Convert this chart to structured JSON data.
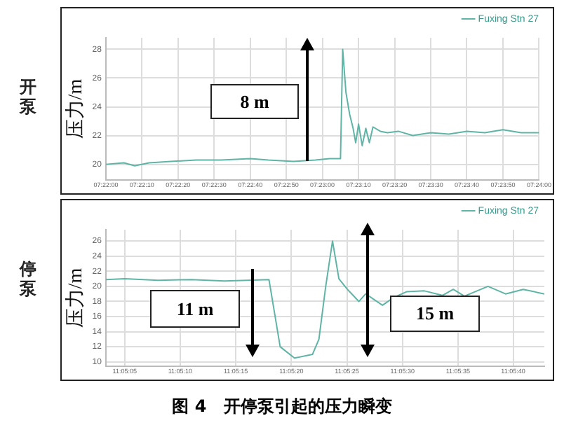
{
  "chart_data": [
    {
      "type": "line",
      "title": "开泵",
      "ylabel": "压力/m",
      "legend": "top right",
      "grid": true,
      "annotations": [
        "8 m"
      ],
      "xlim": [
        7.36667,
        7.4
      ],
      "xticks": [
        {
          "value": 7.36667,
          "label": "07:22:00"
        },
        {
          "value": 7.36944,
          "label": "07:22:10"
        },
        {
          "value": 7.37222,
          "label": "07:22:20"
        },
        {
          "value": 7.375,
          "label": "07:22:30"
        },
        {
          "value": 7.37778,
          "label": "07:22:40"
        },
        {
          "value": 7.38056,
          "label": "07:22:50"
        },
        {
          "value": 7.38333,
          "label": "07:23:00"
        },
        {
          "value": 7.38611,
          "label": "07:23:10"
        },
        {
          "value": 7.38889,
          "label": "07:23:20"
        },
        {
          "value": 7.39167,
          "label": "07:23:30"
        },
        {
          "value": 7.39444,
          "label": "07:23:40"
        },
        {
          "value": 7.39722,
          "label": "07:23:50"
        },
        {
          "value": 7.4,
          "label": "07:24:00"
        }
      ],
      "ylim": [
        18.9,
        28.8
      ],
      "yticks": [
        20,
        22,
        24,
        26,
        28
      ],
      "x": [
        7.36667,
        7.36806,
        7.36889,
        7.37,
        7.37167,
        7.37361,
        7.37556,
        7.37778,
        7.37917,
        7.38111,
        7.38278,
        7.38389,
        7.38472,
        7.38489,
        7.38514,
        7.38542,
        7.38569,
        7.38589,
        7.38611,
        7.38639,
        7.38667,
        7.38694,
        7.38722,
        7.38778,
        7.38833,
        7.38917,
        7.39028,
        7.39167,
        7.39306,
        7.39444,
        7.39583,
        7.39722,
        7.39861,
        7.4
      ],
      "series": [
        {
          "name": "Fuxing Stn 27",
          "color": "#5fb5a5",
          "values": [
            20.0,
            20.1,
            19.9,
            20.1,
            20.2,
            20.3,
            20.3,
            20.4,
            20.3,
            20.2,
            20.3,
            20.4,
            20.4,
            28.0,
            25,
            23.5,
            22.5,
            21.5,
            22.8,
            21.3,
            22.5,
            21.5,
            22.6,
            22.3,
            22.2,
            22.3,
            22.0,
            22.2,
            22.1,
            22.3,
            22.2,
            22.4,
            22.2,
            22.2
          ]
        }
      ]
    },
    {
      "type": "line",
      "title": "停泵",
      "ylabel": "压力/m",
      "legend": "top right",
      "grid": true,
      "annotations": [
        "11 m",
        "15 m",
        "图 4　开停泵引起的压力瞬变"
      ],
      "xlim": [
        11.08425,
        11.09522
      ],
      "xticks": [
        {
          "value": 11.08472,
          "label": "11:05:05"
        },
        {
          "value": 11.08611,
          "label": "11:05:10"
        },
        {
          "value": 11.0875,
          "label": "11:05:15"
        },
        {
          "value": 11.08889,
          "label": "11:05:20"
        },
        {
          "value": 11.09028,
          "label": "11:05:25"
        },
        {
          "value": 11.09167,
          "label": "11:05:30"
        },
        {
          "value": 11.09306,
          "label": "11:05:35"
        },
        {
          "value": 11.09444,
          "label": "11:05:40"
        }
      ],
      "ylim": [
        9.4,
        27.5
      ],
      "yticks": [
        10,
        12,
        14,
        16,
        18,
        20,
        22,
        24,
        26
      ],
      "x": [
        11.08425,
        11.08472,
        11.08556,
        11.08639,
        11.08722,
        11.08778,
        11.08833,
        11.08861,
        11.08897,
        11.08942,
        11.08958,
        11.08975,
        11.08992,
        11.09008,
        11.09031,
        11.09058,
        11.09075,
        11.09117,
        11.09144,
        11.09178,
        11.09222,
        11.09267,
        11.09294,
        11.09322,
        11.09381,
        11.09425,
        11.09469,
        11.09522
      ],
      "series": [
        {
          "name": "Fuxing Stn 27",
          "color": "#5fb5a5",
          "values": [
            20.9,
            21.0,
            20.8,
            20.9,
            20.7,
            20.8,
            20.9,
            12,
            10.5,
            11,
            13,
            20,
            26,
            21,
            19.5,
            18,
            19,
            17.5,
            18.5,
            19.3,
            19.4,
            18.8,
            19.6,
            18.7,
            20,
            19,
            19.6,
            19.0
          ]
        }
      ]
    }
  ]
}
